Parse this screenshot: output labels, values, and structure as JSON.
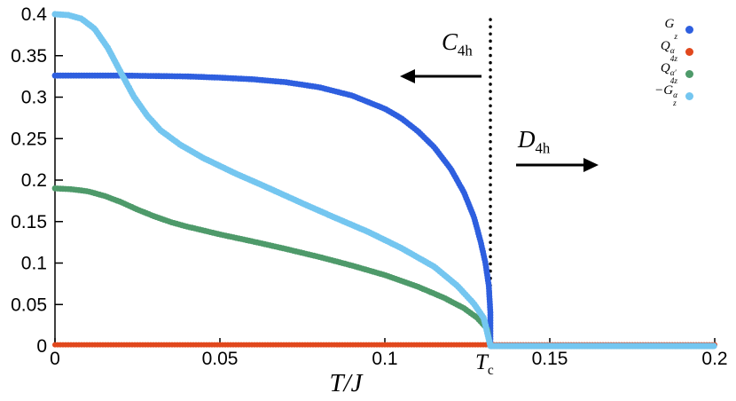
{
  "chart_data": {
    "type": "scatter",
    "title": "",
    "xlabel": "T/J",
    "ylabel": "",
    "xlim": [
      0,
      0.2
    ],
    "ylim": [
      0,
      0.4
    ],
    "grid": false,
    "legend_position": "top-right",
    "x_ticks": [
      {
        "v": 0,
        "label": "0"
      },
      {
        "v": 0.05,
        "label": "0.05"
      },
      {
        "v": 0.1,
        "label": "0.1"
      },
      {
        "v": 0.15,
        "label": "0.15"
      },
      {
        "v": 0.2,
        "label": "0.2"
      }
    ],
    "y_ticks": [
      {
        "v": 0,
        "label": "0"
      },
      {
        "v": 0.05,
        "label": "0.05"
      },
      {
        "v": 0.1,
        "label": "0.1"
      },
      {
        "v": 0.15,
        "label": "0.15"
      },
      {
        "v": 0.2,
        "label": "0.2"
      },
      {
        "v": 0.25,
        "label": "0.25"
      },
      {
        "v": 0.3,
        "label": "0.3"
      },
      {
        "v": 0.35,
        "label": "0.35"
      },
      {
        "v": 0.4,
        "label": "0.4"
      }
    ],
    "critical_temperature": {
      "value": 0.132,
      "label": {
        "base": "T",
        "sub": "c"
      }
    },
    "phase_left": {
      "base": "C",
      "sub": "4h"
    },
    "phase_right": {
      "base": "D",
      "sub": "4h"
    },
    "series": [
      {
        "name": "Gz",
        "label": {
          "base": "G",
          "sup": "",
          "sub": "z"
        },
        "color": "#2e5fdf",
        "marker_r": 3.4,
        "points": [
          [
            0,
            0.326
          ],
          [
            0.01,
            0.326
          ],
          [
            0.02,
            0.326
          ],
          [
            0.03,
            0.3255
          ],
          [
            0.04,
            0.325
          ],
          [
            0.05,
            0.3235
          ],
          [
            0.06,
            0.3215
          ],
          [
            0.07,
            0.318
          ],
          [
            0.08,
            0.312
          ],
          [
            0.09,
            0.302
          ],
          [
            0.1,
            0.286
          ],
          [
            0.105,
            0.2745
          ],
          [
            0.11,
            0.259
          ],
          [
            0.115,
            0.2395
          ],
          [
            0.12,
            0.2135
          ],
          [
            0.124,
            0.185
          ],
          [
            0.127,
            0.1555
          ],
          [
            0.129,
            0.1265
          ],
          [
            0.1305,
            0.1
          ],
          [
            0.1315,
            0.073
          ],
          [
            0.132,
            0.04
          ],
          [
            0.132,
            0
          ],
          [
            0.2,
            0
          ]
        ]
      },
      {
        "name": "Q4z-alpha",
        "label": {
          "base": "Q",
          "sup": "α",
          "sub": "4z"
        },
        "color": "#e1481d",
        "marker_r": 3.0,
        "points": [
          [
            0,
            0.0015
          ],
          [
            0.2,
            0.0015
          ]
        ]
      },
      {
        "name": "Q4z-alpha-prime",
        "label": {
          "base": "Q",
          "sup": "α′",
          "sub": "4z"
        },
        "color": "#4e9a6a",
        "marker_r": 3.4,
        "points": [
          [
            0,
            0.19
          ],
          [
            0.005,
            0.189
          ],
          [
            0.01,
            0.1865
          ],
          [
            0.015,
            0.181
          ],
          [
            0.02,
            0.1735
          ],
          [
            0.025,
            0.1645
          ],
          [
            0.03,
            0.1565
          ],
          [
            0.035,
            0.1495
          ],
          [
            0.04,
            0.144
          ],
          [
            0.05,
            0.1345
          ],
          [
            0.06,
            0.126
          ],
          [
            0.07,
            0.117
          ],
          [
            0.08,
            0.1075
          ],
          [
            0.09,
            0.097
          ],
          [
            0.1,
            0.0855
          ],
          [
            0.11,
            0.0715
          ],
          [
            0.118,
            0.058
          ],
          [
            0.124,
            0.0455
          ],
          [
            0.128,
            0.034
          ],
          [
            0.131,
            0.021
          ],
          [
            0.132,
            0
          ],
          [
            0.2,
            0
          ]
        ]
      },
      {
        "name": "minus-Gz-alpha",
        "label": {
          "base": "−G",
          "sup": "α",
          "sub": "z"
        },
        "color": "#74c6f0",
        "marker_r": 3.6,
        "points": [
          [
            0,
            0.4
          ],
          [
            0.004,
            0.399
          ],
          [
            0.008,
            0.3945
          ],
          [
            0.012,
            0.3825
          ],
          [
            0.016,
            0.3595
          ],
          [
            0.02,
            0.3295
          ],
          [
            0.024,
            0.3
          ],
          [
            0.028,
            0.2775
          ],
          [
            0.032,
            0.26
          ],
          [
            0.038,
            0.2425
          ],
          [
            0.045,
            0.2265
          ],
          [
            0.055,
            0.2075
          ],
          [
            0.065,
            0.19
          ],
          [
            0.075,
            0.172
          ],
          [
            0.085,
            0.1545
          ],
          [
            0.095,
            0.1375
          ],
          [
            0.105,
            0.118
          ],
          [
            0.115,
            0.0955
          ],
          [
            0.122,
            0.0725
          ],
          [
            0.127,
            0.051
          ],
          [
            0.13,
            0.0335
          ],
          [
            0.132,
            0
          ],
          [
            0.2,
            0
          ]
        ]
      }
    ]
  }
}
